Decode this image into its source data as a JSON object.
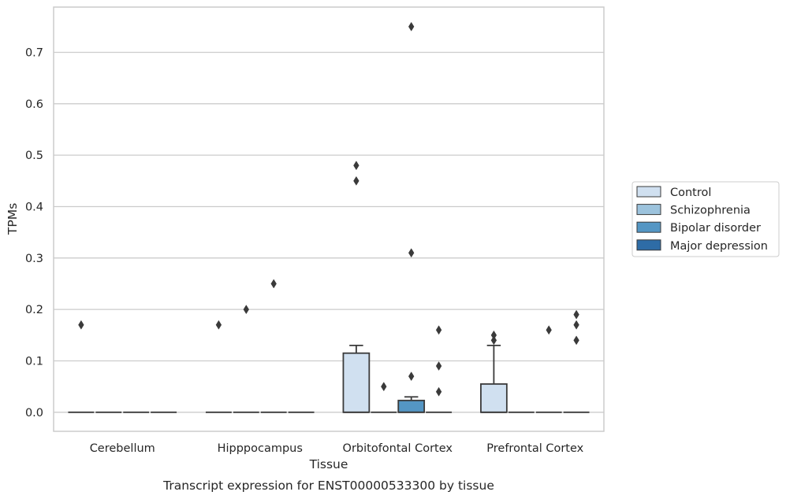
{
  "chart_data": {
    "type": "box",
    "title": "",
    "caption": "Transcript expression for ENST00000533300 by tissue",
    "xlabel": "Tissue",
    "ylabel": "TPMs",
    "ylim": [
      -0.037,
      0.788
    ],
    "yticks": [
      0.0,
      0.1,
      0.2,
      0.3,
      0.4,
      0.5,
      0.6,
      0.7
    ],
    "ytick_labels": [
      "0.0",
      "0.1",
      "0.2",
      "0.3",
      "0.4",
      "0.5",
      "0.6",
      "0.7"
    ],
    "grid": "horizontal",
    "legend_position": "right",
    "categories": [
      "Cerebellum",
      "Hipppocampus",
      "Orbitofontal Cortex",
      "Prefrontal Cortex"
    ],
    "series": [
      {
        "name": "Control",
        "color": "#d0e0f0",
        "boxes": [
          {
            "q1": 0,
            "median": 0,
            "q3": 0,
            "whislo": 0,
            "whishi": 0,
            "fliers": [
              0.17
            ]
          },
          {
            "q1": 0,
            "median": 0,
            "q3": 0,
            "whislo": 0,
            "whishi": 0,
            "fliers": [
              0.17
            ]
          },
          {
            "q1": 0,
            "median": 0,
            "q3": 0.115,
            "whislo": 0,
            "whishi": 0.13,
            "fliers": [
              0.45,
              0.48
            ]
          },
          {
            "q1": 0,
            "median": 0,
            "q3": 0.055,
            "whislo": 0,
            "whishi": 0.13,
            "fliers": [
              0.14,
              0.15
            ]
          }
        ]
      },
      {
        "name": "Schizophrenia",
        "color": "#9cc3dd",
        "boxes": [
          {
            "q1": 0,
            "median": 0,
            "q3": 0,
            "whislo": 0,
            "whishi": 0,
            "fliers": []
          },
          {
            "q1": 0,
            "median": 0,
            "q3": 0,
            "whislo": 0,
            "whishi": 0,
            "fliers": [
              0.2
            ]
          },
          {
            "q1": 0,
            "median": 0,
            "q3": 0,
            "whislo": 0,
            "whishi": 0,
            "fliers": [
              0.05
            ]
          },
          {
            "q1": 0,
            "median": 0,
            "q3": 0,
            "whislo": 0,
            "whishi": 0,
            "fliers": []
          }
        ]
      },
      {
        "name": "Bipolar disorder",
        "color": "#5496c4",
        "boxes": [
          {
            "q1": 0,
            "median": 0,
            "q3": 0,
            "whislo": 0,
            "whishi": 0,
            "fliers": []
          },
          {
            "q1": 0,
            "median": 0,
            "q3": 0,
            "whislo": 0,
            "whishi": 0,
            "fliers": [
              0.25
            ]
          },
          {
            "q1": 0,
            "median": 0,
            "q3": 0.023,
            "whislo": 0,
            "whishi": 0.03,
            "fliers": [
              0.07,
              0.31,
              0.75
            ]
          },
          {
            "q1": 0,
            "median": 0,
            "q3": 0,
            "whislo": 0,
            "whishi": 0,
            "fliers": [
              0.16
            ]
          }
        ]
      },
      {
        "name": "Major depression",
        "color": "#2e6ca6",
        "boxes": [
          {
            "q1": 0,
            "median": 0,
            "q3": 0,
            "whislo": 0,
            "whishi": 0,
            "fliers": []
          },
          {
            "q1": 0,
            "median": 0,
            "q3": 0,
            "whislo": 0,
            "whishi": 0,
            "fliers": []
          },
          {
            "q1": 0,
            "median": 0,
            "q3": 0,
            "whislo": 0,
            "whishi": 0,
            "fliers": [
              0.04,
              0.09,
              0.16
            ]
          },
          {
            "q1": 0,
            "median": 0,
            "q3": 0,
            "whislo": 0,
            "whishi": 0,
            "fliers": [
              0.14,
              0.17,
              0.19
            ]
          }
        ]
      }
    ]
  }
}
